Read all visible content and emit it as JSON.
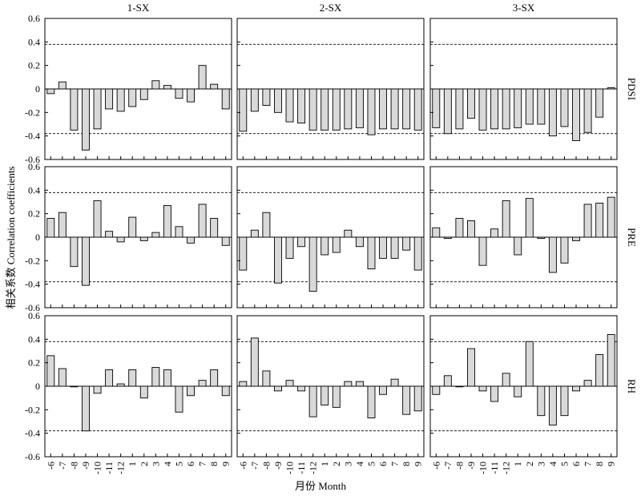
{
  "chart_data": {
    "type": "bar",
    "ylabel": "相关系数 Correlation coefficients",
    "xlabel": "月份 Month",
    "ylim": [
      -0.6,
      0.6
    ],
    "yticks": [
      "0.6",
      "0.4",
      "0.2",
      "0",
      "-0.2",
      "-0.4",
      "-0.6"
    ],
    "ytick_values": [
      0.6,
      0.4,
      0.2,
      0,
      -0.2,
      -0.4,
      -0.6
    ],
    "threshold": 0.38,
    "categories": [
      "-6",
      "-7",
      "-8",
      "-9",
      "-10",
      "-11",
      "-12",
      "1",
      "2",
      "3",
      "4",
      "5",
      "6",
      "7",
      "8",
      "9"
    ],
    "columns": [
      "1-SX",
      "2-SX",
      "3-SX"
    ],
    "rows": [
      "PDSI",
      "PRE",
      "RH"
    ],
    "panels": [
      [
        {
          "column": "1-SX",
          "row": "PDSI",
          "values": [
            -0.04,
            0.06,
            -0.35,
            -0.52,
            -0.34,
            -0.17,
            -0.19,
            -0.15,
            -0.09,
            0.07,
            0.03,
            -0.08,
            -0.11,
            0.2,
            0.04,
            -0.17
          ]
        },
        {
          "column": "2-SX",
          "row": "PDSI",
          "values": [
            -0.36,
            -0.19,
            -0.14,
            -0.2,
            -0.28,
            -0.29,
            -0.35,
            -0.35,
            -0.35,
            -0.34,
            -0.33,
            -0.39,
            -0.34,
            -0.34,
            -0.34,
            -0.35
          ]
        },
        {
          "column": "3-SX",
          "row": "PDSI",
          "values": [
            -0.33,
            -0.38,
            -0.34,
            -0.25,
            -0.35,
            -0.34,
            -0.34,
            -0.33,
            -0.3,
            -0.3,
            -0.4,
            -0.32,
            -0.44,
            -0.37,
            -0.24,
            0.01
          ]
        }
      ],
      [
        {
          "column": "1-SX",
          "row": "PRE",
          "values": [
            0.16,
            0.21,
            -0.25,
            -0.41,
            0.31,
            0.05,
            -0.04,
            0.17,
            -0.03,
            0.04,
            0.27,
            0.09,
            -0.05,
            0.28,
            0.16,
            -0.07
          ]
        },
        {
          "column": "2-SX",
          "row": "PRE",
          "values": [
            -0.28,
            0.06,
            0.21,
            -0.39,
            -0.18,
            -0.08,
            -0.46,
            -0.15,
            -0.13,
            0.06,
            -0.08,
            -0.27,
            -0.18,
            -0.18,
            -0.11,
            -0.28
          ]
        },
        {
          "column": "3-SX",
          "row": "PRE",
          "values": [
            0.08,
            -0.01,
            0.16,
            0.14,
            -0.24,
            0.07,
            0.31,
            -0.15,
            0.33,
            -0.01,
            -0.3,
            -0.22,
            -0.03,
            0.28,
            0.29,
            0.34
          ]
        }
      ],
      [
        {
          "column": "1-SX",
          "row": "RH",
          "values": [
            0.26,
            0.15,
            0.0,
            -0.38,
            -0.06,
            0.14,
            0.02,
            0.14,
            -0.1,
            0.16,
            0.14,
            -0.22,
            -0.08,
            0.05,
            0.14,
            -0.08
          ]
        },
        {
          "column": "2-SX",
          "row": "RH",
          "values": [
            0.04,
            0.41,
            0.13,
            -0.04,
            0.05,
            -0.04,
            -0.26,
            -0.16,
            -0.18,
            0.04,
            0.04,
            -0.27,
            -0.07,
            0.06,
            -0.24,
            -0.21
          ]
        },
        {
          "column": "3-SX",
          "row": "RH",
          "values": [
            -0.07,
            0.09,
            0.0,
            0.32,
            -0.04,
            -0.13,
            0.11,
            -0.09,
            0.38,
            -0.25,
            -0.33,
            -0.25,
            -0.04,
            0.05,
            0.27,
            0.44
          ]
        }
      ]
    ]
  }
}
